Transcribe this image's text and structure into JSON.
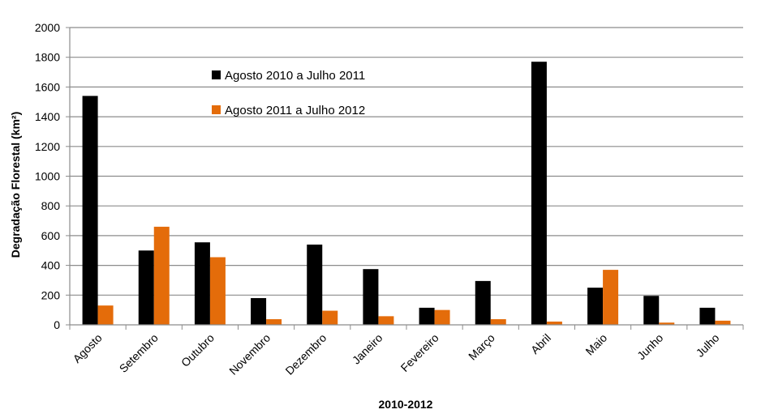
{
  "chart_data": {
    "type": "bar",
    "title": "",
    "xlabel": "2010-2012",
    "ylabel": "Degradação Florestal (km²)",
    "ylim": [
      0,
      2000
    ],
    "yticks": [
      0,
      200,
      400,
      600,
      800,
      1000,
      1200,
      1400,
      1600,
      1800,
      2000
    ],
    "grid": true,
    "legend_position": "top-left",
    "categories": [
      "Agosto",
      "Setembro",
      "Outubro",
      "Novembro",
      "Dezembro",
      "Janeiro",
      "Fevereiro",
      "Março",
      "Abril",
      "Maio",
      "Junho",
      "Julho"
    ],
    "series": [
      {
        "name": "Agosto 2010 a Julho 2011",
        "color": "#000000",
        "values": [
          1540,
          500,
          555,
          180,
          540,
          375,
          115,
          295,
          1770,
          250,
          195,
          115
        ]
      },
      {
        "name": "Agosto 2011 a Julho 2012",
        "color": "#E46C0A",
        "values": [
          130,
          660,
          455,
          38,
          95,
          58,
          100,
          38,
          22,
          370,
          15,
          28
        ]
      }
    ]
  }
}
